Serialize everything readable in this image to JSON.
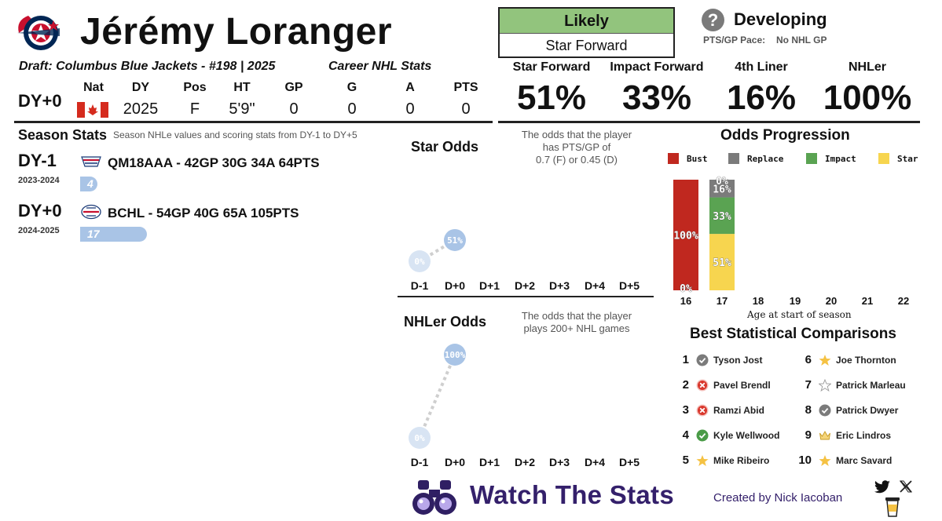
{
  "header": {
    "player_name": "Jérémy Loranger",
    "draft_line": "Draft: Columbus Blue Jackets - #198 | 2025",
    "career_title": "Career NHL Stats",
    "projection": {
      "top": "Likely",
      "bottom": "Star Forward",
      "top_color": "#92c47d"
    },
    "development": {
      "icon": "?",
      "label": "Developing",
      "pace_label": "PTS/GP Pace:",
      "pace_value": "No NHL GP"
    }
  },
  "stats": {
    "dy_label": "DY+0",
    "headers": [
      "Nat",
      "DY",
      "Pos",
      "HT",
      "GP",
      "G",
      "A",
      "PTS"
    ],
    "values": [
      "",
      "2025",
      "F",
      "5'9\"",
      "0",
      "0",
      "0",
      "0"
    ],
    "nationality_icon": "canada-flag-icon"
  },
  "odds": [
    {
      "label": "Star Forward",
      "value": "51%"
    },
    {
      "label": "Impact Forward",
      "value": "33%"
    },
    {
      "label": "4th Liner",
      "value": "16%"
    },
    {
      "label": "NHLer",
      "value": "100%"
    }
  ],
  "season_stats": {
    "title": "Season Stats",
    "subtitle": "Season NHLe values and scoring stats from DY-1 to DY+5",
    "rows": [
      {
        "dy": "DY-1",
        "years": "2023-2024",
        "league_icon": "qmjhl-logo-icon",
        "line": "QM18AAA - 42GP 30G 34A 64PTS",
        "nhle": "4",
        "nhle_fraction": 0.04
      },
      {
        "dy": "DY+0",
        "years": "2024-2025",
        "league_icon": "bchl-logo-icon",
        "line": "BCHL - 54GP 40G 65A 105PTS",
        "nhle": "17",
        "nhle_fraction": 0.17
      }
    ]
  },
  "star_odds_chart": {
    "title": "Star Odds",
    "description": [
      "The odds that the player",
      "has PTS/GP of",
      "0.7 (F) or 0.45 (D)"
    ],
    "x_labels": [
      "D-1",
      "D+0",
      "D+1",
      "D+2",
      "D+3",
      "D+4",
      "D+5"
    ],
    "points": [
      {
        "x": "D-1",
        "value": 0,
        "label": "0%"
      },
      {
        "x": "D+0",
        "value": 51,
        "label": "51%"
      }
    ]
  },
  "nhler_odds_chart": {
    "title": "NHLer Odds",
    "description": [
      "The odds that the player",
      "plays 200+ NHL games"
    ],
    "x_labels": [
      "D-1",
      "D+0",
      "D+1",
      "D+2",
      "D+3",
      "D+4",
      "D+5"
    ],
    "points": [
      {
        "x": "D-1",
        "value": 0,
        "label": "0%"
      },
      {
        "x": "D+0",
        "value": 100,
        "label": "100%"
      }
    ]
  },
  "chart_data": {
    "type": "bar",
    "title": "Odds Progression",
    "xlabel": "Age at start of season",
    "categories": [
      "16",
      "17",
      "18",
      "19",
      "20",
      "21",
      "22"
    ],
    "stacked": true,
    "ylim": [
      0,
      100
    ],
    "legend": [
      {
        "name": "Bust",
        "color": "#c0281f"
      },
      {
        "name": "Replace",
        "color": "#7b7b7b"
      },
      {
        "name": "Impact",
        "color": "#5aa352"
      },
      {
        "name": "Star",
        "color": "#f7d54f"
      }
    ],
    "series": [
      {
        "name": "Star",
        "values": [
          0,
          51,
          null,
          null,
          null,
          null,
          null
        ],
        "labels": [
          "",
          "51%",
          "",
          "",
          "",
          "",
          ""
        ]
      },
      {
        "name": "Impact",
        "values": [
          0,
          33,
          null,
          null,
          null,
          null,
          null
        ],
        "labels": [
          "",
          "33%",
          "",
          "",
          "",
          "",
          ""
        ]
      },
      {
        "name": "Replace",
        "values": [
          0,
          16,
          null,
          null,
          null,
          null,
          null
        ],
        "labels": [
          "",
          "16%",
          "",
          "",
          "",
          "",
          ""
        ]
      },
      {
        "name": "Bust",
        "values": [
          100,
          0,
          null,
          null,
          null,
          null,
          null
        ],
        "labels": [
          "100%",
          "0%",
          "",
          "",
          "",
          "",
          ""
        ]
      }
    ],
    "extra_labels": [
      {
        "category": "16",
        "label": "0%"
      }
    ]
  },
  "comparisons": {
    "title": "Best Statistical Comparisons",
    "items": [
      {
        "rank": "1",
        "name": "Tyson Jost",
        "icon": "grey-check-icon"
      },
      {
        "rank": "2",
        "name": "Pavel Brendl",
        "icon": "red-x-icon"
      },
      {
        "rank": "3",
        "name": "Ramzi Abid",
        "icon": "red-x-icon"
      },
      {
        "rank": "4",
        "name": "Kyle Wellwood",
        "icon": "green-check-icon"
      },
      {
        "rank": "5",
        "name": "Mike Ribeiro",
        "icon": "gold-star-icon"
      },
      {
        "rank": "6",
        "name": "Joe Thornton",
        "icon": "gold-star-icon"
      },
      {
        "rank": "7",
        "name": "Patrick Marleau",
        "icon": "outline-star-icon"
      },
      {
        "rank": "8",
        "name": "Patrick Dwyer",
        "icon": "grey-check-icon"
      },
      {
        "rank": "9",
        "name": "Eric Lindros",
        "icon": "crown-icon"
      },
      {
        "rank": "10",
        "name": "Marc Savard",
        "icon": "gold-star-icon"
      }
    ]
  },
  "footer": {
    "brand": "Watch The Stats",
    "creator": "Created by Nick Iacoban",
    "icons": [
      "binoculars-icon",
      "twitter-icon",
      "x-icon",
      "coffee-icon"
    ]
  }
}
